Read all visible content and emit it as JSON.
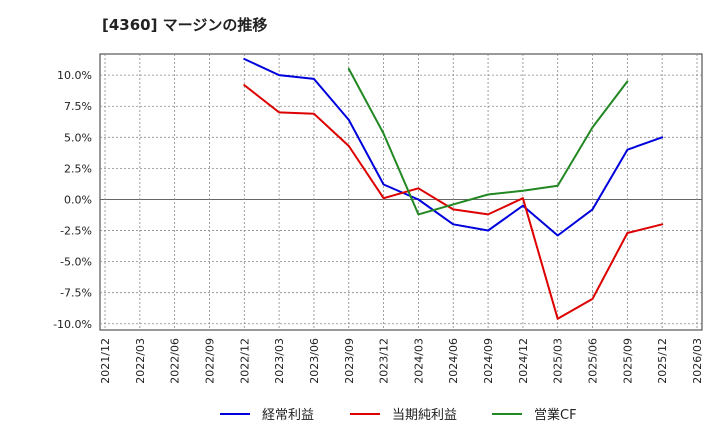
{
  "chart_data": {
    "type": "line",
    "title": "[4360]  マージンの推移",
    "xlabel": "",
    "ylabel": "",
    "ylim": [
      -10.5,
      11.7
    ],
    "y_ticks": [
      10,
      7.5,
      5,
      2.5,
      0,
      -2.5,
      -5,
      -7.5,
      -10
    ],
    "y_tick_labels": [
      "10.0%",
      "7.5%",
      "5.0%",
      "2.5%",
      "0.0%",
      "-2.5%",
      "-5.0%",
      "-7.5%",
      "-10.0%"
    ],
    "x_ticks": [
      "2021/12",
      "2022/03",
      "2022/06",
      "2022/09",
      "2022/12",
      "2023/03",
      "2023/06",
      "2023/09",
      "2023/12",
      "2024/03",
      "2024/06",
      "2024/09",
      "2024/12",
      "2025/03",
      "2025/06",
      "2025/09",
      "2025/12",
      "2026/03"
    ],
    "grid": true,
    "legend_position": "bottom",
    "series": [
      {
        "name": "経常利益",
        "color": "#0000dd",
        "x": [
          "2022/12",
          "2023/03",
          "2023/06",
          "2023/09",
          "2023/12",
          "2024/03",
          "2024/06",
          "2024/09",
          "2024/12",
          "2025/03",
          "2025/06",
          "2025/09",
          "2025/12"
        ],
        "values": [
          11.3,
          10.0,
          9.7,
          6.4,
          1.2,
          0.0,
          -2.0,
          -2.5,
          -0.5,
          -2.9,
          -0.8,
          4.0,
          5.0
        ]
      },
      {
        "name": "当期純利益",
        "color": "#dd0000",
        "x": [
          "2022/12",
          "2023/03",
          "2023/06",
          "2023/09",
          "2023/12",
          "2024/03",
          "2024/06",
          "2024/09",
          "2024/12",
          "2025/03",
          "2025/06",
          "2025/09",
          "2025/12"
        ],
        "values": [
          9.2,
          7.0,
          6.9,
          4.3,
          0.1,
          0.9,
          -0.8,
          -1.2,
          0.1,
          -9.6,
          -8.0,
          -2.7,
          -2.0
        ]
      },
      {
        "name": "営業CF",
        "color": "#228822",
        "x": [
          "2023/09",
          "2023/12",
          "2024/03",
          "2024/06",
          "2024/09",
          "2024/12",
          "2025/03",
          "2025/06",
          "2025/09"
        ],
        "values": [
          10.5,
          5.3,
          -1.2,
          -0.4,
          0.4,
          0.7,
          1.1,
          5.8,
          9.5
        ]
      }
    ]
  }
}
